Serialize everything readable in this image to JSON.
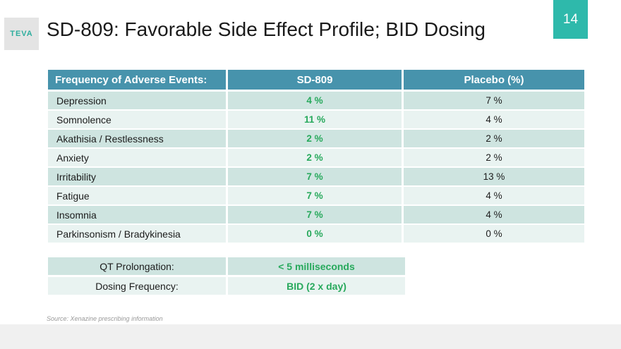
{
  "header": {
    "logo_text": "TEVA",
    "title": "SD-809: Favorable Side Effect Profile; BID Dosing",
    "slide_number": "14"
  },
  "colors": {
    "table_header_bg": "#4793AC",
    "row_dark_bg": "#CEE4E0",
    "row_light_bg": "#E9F3F1",
    "value_green": "#27A95C",
    "slide_number_bg": "#2EB9AB",
    "logo_teal": "#2FAE9E",
    "footer_band_bg": "#F0F0F0"
  },
  "adverse_events_table": {
    "headers": [
      "Frequency of Adverse Events:",
      "SD-809",
      "Placebo (%)"
    ],
    "rows": [
      {
        "label": "Depression",
        "sd809": "4 %",
        "placebo": "7 %"
      },
      {
        "label": "Somnolence",
        "sd809": "11 %",
        "placebo": "4 %"
      },
      {
        "label": "Akathisia / Restlessness",
        "sd809": "2 %",
        "placebo": "2 %"
      },
      {
        "label": "Anxiety",
        "sd809": "2 %",
        "placebo": "2 %"
      },
      {
        "label": "Irritability",
        "sd809": "7 %",
        "placebo": "13 %"
      },
      {
        "label": "Fatigue",
        "sd809": "7 %",
        "placebo": "4 %"
      },
      {
        "label": "Insomnia",
        "sd809": "7 %",
        "placebo": "4 %"
      },
      {
        "label": "Parkinsonism / Bradykinesia",
        "sd809": "0 %",
        "placebo": "0 %"
      }
    ]
  },
  "summary_table": {
    "rows": [
      {
        "label": "QT Prolongation:",
        "value": "< 5 milliseconds"
      },
      {
        "label": "Dosing Frequency:",
        "value": "BID (2 x day)"
      }
    ]
  },
  "footer": {
    "source": "Source: Xenazine prescribing information"
  }
}
